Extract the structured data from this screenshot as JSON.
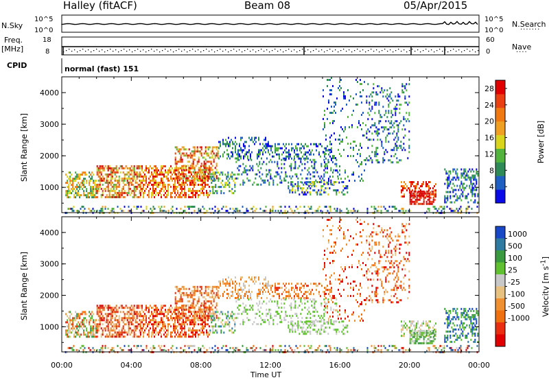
{
  "header": {
    "station": "Halley (fitACF)",
    "beam": "Beam 08",
    "date": "05/Apr/2015"
  },
  "strips": {
    "nsky": {
      "label": "N.Sky",
      "tick_top": "10^5",
      "tick_bottom": "10^0"
    },
    "nsearch": {
      "label": "N.Search",
      "tick_top": "10^5",
      "tick_bottom": "10^0"
    },
    "freq": {
      "label_line1": "Freq.",
      "label_line2": "[MHz]",
      "tick_top": "18",
      "tick_bottom": "8"
    },
    "nave": {
      "label": "Nave",
      "tick_top": "60",
      "tick_bottom": "0"
    },
    "cpid": {
      "label": "CPID",
      "value": "normal (fast) 151"
    }
  },
  "colors": {
    "power": [
      "#0a0ae6",
      "#1f5fc4",
      "#2e8b57",
      "#52b43c",
      "#d8d420",
      "#f0a020",
      "#f07a10",
      "#e84010",
      "#e00000"
    ],
    "velocity": [
      "#1848c8",
      "#2e7aa0",
      "#3a9a40",
      "#60c030",
      "#c8c8c8",
      "#e8c080",
      "#f09030",
      "#f07010",
      "#e83010",
      "#e00000"
    ]
  },
  "chart_data": [
    {
      "type": "heatmap",
      "ylabel": "Slant Range [km]",
      "y_ticks": [
        "1000",
        "2000",
        "3000",
        "4000"
      ],
      "ylim": [
        200,
        4500
      ],
      "x_ticks": [
        "00:00",
        "04:00",
        "08:00",
        "12:00",
        "16:00",
        "20:00",
        "00:00"
      ],
      "xlim_hours": [
        0,
        24
      ],
      "colorbar": {
        "label": "Power [dB]",
        "ticks": [
          "4",
          "8",
          "12",
          "16",
          "20",
          "24",
          "28"
        ],
        "range": [
          0,
          30
        ]
      }
    },
    {
      "type": "heatmap",
      "xlabel": "Time UT",
      "ylabel": "Slant Range [km]",
      "y_ticks": [
        "1000",
        "2000",
        "3000",
        "4000"
      ],
      "ylim": [
        200,
        4500
      ],
      "x_ticks": [
        "00:00",
        "04:00",
        "08:00",
        "12:00",
        "16:00",
        "20:00",
        "00:00"
      ],
      "xlim_hours": [
        0,
        24
      ],
      "colorbar": {
        "label": "Velocity [m s^-1]",
        "ticks": [
          "1000",
          "500",
          "100",
          "25",
          "-25",
          "-100",
          "-500",
          "-1000"
        ]
      }
    }
  ]
}
